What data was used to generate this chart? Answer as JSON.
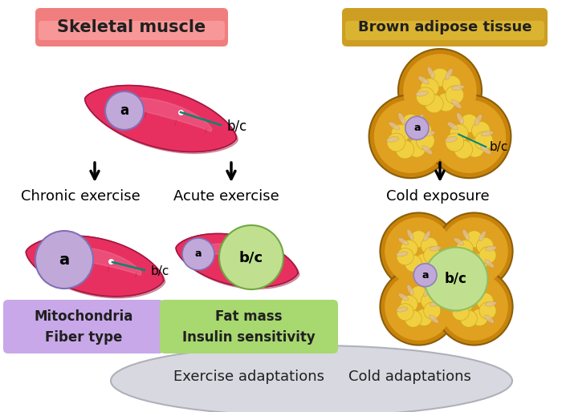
{
  "title_left": "Skeletal muscle",
  "title_right": "Brown adipose tissue",
  "title_left_color": "#F07070",
  "title_right_color": "#C8940A",
  "label_chronic": "Chronic exercise",
  "label_acute": "Acute exercise",
  "label_cold": "Cold exposure",
  "label_a": "a",
  "label_bc": "b/c",
  "box_mito_text": "Mitochondria\nFiber type",
  "box_fat_text": "Fat mass\nInsulin sensitivity",
  "box_mito_color": "#C8A8E8",
  "box_fat_color": "#A8D870",
  "ellipse_text1": "Exercise adaptations",
  "ellipse_text2": "Cold adaptations",
  "ellipse_color": "#D8D8E0",
  "muscle_color": "#E83060",
  "muscle_mid": "#D02858",
  "muscle_dark": "#A01840",
  "muscle_light": "#F080A0",
  "adipose_outer": "#C8840A",
  "adipose_mid": "#E0A020",
  "adipose_fill": "#F0D040",
  "adipose_bg": "#D09010",
  "nucleus_a_color": "#C0A8D8",
  "nucleus_bc_color": "#C0E090",
  "bg_color": "#FFFFFF",
  "teal_line": "#008870"
}
